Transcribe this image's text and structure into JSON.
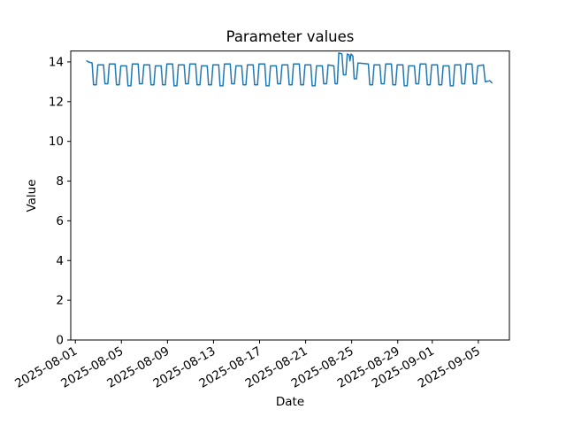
{
  "chart_data": {
    "type": "line",
    "title": "Parameter values",
    "xlabel": "Date",
    "ylabel": "Value",
    "grid": false,
    "legend": "none",
    "x_unit": "days since 2025-08-01",
    "xlim": [
      -0.4,
      37.7
    ],
    "ylim": [
      0,
      14.55
    ],
    "y_ticks": [
      0,
      2,
      4,
      6,
      8,
      10,
      12,
      14
    ],
    "x_ticks": [
      {
        "t": 0,
        "label": "2025-08-01"
      },
      {
        "t": 4,
        "label": "2025-08-05"
      },
      {
        "t": 8,
        "label": "2025-08-09"
      },
      {
        "t": 12,
        "label": "2025-08-13"
      },
      {
        "t": 16,
        "label": "2025-08-17"
      },
      {
        "t": 20,
        "label": "2025-08-21"
      },
      {
        "t": 24,
        "label": "2025-08-25"
      },
      {
        "t": 28,
        "label": "2025-08-29"
      },
      {
        "t": 31,
        "label": "2025-09-01"
      },
      {
        "t": 35,
        "label": "2025-09-05"
      }
    ],
    "series": [
      {
        "color": "#1f77b4",
        "line_width": 1.5,
        "points": [
          [
            1.0,
            14.05
          ],
          [
            1.12,
            14.0
          ],
          [
            1.45,
            13.95
          ],
          [
            1.58,
            12.85
          ],
          [
            1.82,
            12.85
          ],
          [
            1.95,
            13.85
          ],
          [
            2.45,
            13.85
          ],
          [
            2.57,
            12.9
          ],
          [
            2.82,
            12.9
          ],
          [
            2.95,
            13.9
          ],
          [
            3.45,
            13.9
          ],
          [
            3.57,
            12.85
          ],
          [
            3.82,
            12.85
          ],
          [
            3.95,
            13.8
          ],
          [
            4.45,
            13.8
          ],
          [
            4.57,
            12.8
          ],
          [
            4.82,
            12.8
          ],
          [
            4.95,
            13.9
          ],
          [
            5.45,
            13.9
          ],
          [
            5.57,
            12.9
          ],
          [
            5.82,
            12.9
          ],
          [
            5.95,
            13.85
          ],
          [
            6.45,
            13.85
          ],
          [
            6.57,
            12.85
          ],
          [
            6.82,
            12.85
          ],
          [
            6.95,
            13.8
          ],
          [
            7.45,
            13.8
          ],
          [
            7.57,
            12.85
          ],
          [
            7.82,
            12.85
          ],
          [
            7.95,
            13.9
          ],
          [
            8.45,
            13.9
          ],
          [
            8.57,
            12.8
          ],
          [
            8.82,
            12.8
          ],
          [
            8.95,
            13.85
          ],
          [
            9.45,
            13.85
          ],
          [
            9.57,
            12.9
          ],
          [
            9.82,
            12.9
          ],
          [
            9.95,
            13.9
          ],
          [
            10.45,
            13.9
          ],
          [
            10.57,
            12.85
          ],
          [
            10.82,
            12.85
          ],
          [
            10.95,
            13.8
          ],
          [
            11.45,
            13.8
          ],
          [
            11.57,
            12.85
          ],
          [
            11.82,
            12.85
          ],
          [
            11.95,
            13.85
          ],
          [
            12.45,
            13.85
          ],
          [
            12.57,
            12.8
          ],
          [
            12.82,
            12.8
          ],
          [
            12.95,
            13.9
          ],
          [
            13.45,
            13.9
          ],
          [
            13.57,
            12.9
          ],
          [
            13.82,
            12.9
          ],
          [
            13.95,
            13.8
          ],
          [
            14.45,
            13.8
          ],
          [
            14.57,
            12.85
          ],
          [
            14.82,
            12.85
          ],
          [
            14.95,
            13.85
          ],
          [
            15.45,
            13.85
          ],
          [
            15.57,
            12.85
          ],
          [
            15.82,
            12.85
          ],
          [
            15.95,
            13.9
          ],
          [
            16.45,
            13.9
          ],
          [
            16.57,
            12.8
          ],
          [
            16.82,
            12.8
          ],
          [
            16.95,
            13.8
          ],
          [
            17.45,
            13.8
          ],
          [
            17.57,
            12.9
          ],
          [
            17.82,
            12.9
          ],
          [
            17.95,
            13.85
          ],
          [
            18.45,
            13.85
          ],
          [
            18.57,
            12.85
          ],
          [
            18.82,
            12.85
          ],
          [
            18.95,
            13.9
          ],
          [
            19.45,
            13.9
          ],
          [
            19.57,
            12.85
          ],
          [
            19.82,
            12.85
          ],
          [
            19.95,
            13.85
          ],
          [
            20.45,
            13.85
          ],
          [
            20.57,
            12.8
          ],
          [
            20.82,
            12.8
          ],
          [
            20.95,
            13.8
          ],
          [
            21.45,
            13.8
          ],
          [
            21.57,
            12.9
          ],
          [
            21.82,
            12.9
          ],
          [
            21.95,
            13.85
          ],
          [
            22.45,
            13.8
          ],
          [
            22.57,
            12.9
          ],
          [
            22.75,
            12.9
          ],
          [
            22.88,
            14.45
          ],
          [
            23.15,
            14.4
          ],
          [
            23.28,
            13.35
          ],
          [
            23.5,
            13.35
          ],
          [
            23.62,
            14.4
          ],
          [
            23.78,
            14.35
          ],
          [
            23.85,
            14.05
          ],
          [
            23.95,
            14.4
          ],
          [
            24.1,
            14.3
          ],
          [
            24.22,
            13.15
          ],
          [
            24.42,
            13.15
          ],
          [
            24.55,
            13.95
          ],
          [
            25.45,
            13.9
          ],
          [
            25.57,
            12.85
          ],
          [
            25.82,
            12.85
          ],
          [
            25.95,
            13.85
          ],
          [
            26.45,
            13.85
          ],
          [
            26.57,
            12.9
          ],
          [
            26.82,
            12.9
          ],
          [
            26.95,
            13.9
          ],
          [
            27.45,
            13.9
          ],
          [
            27.57,
            12.85
          ],
          [
            27.82,
            12.85
          ],
          [
            27.95,
            13.85
          ],
          [
            28.45,
            13.85
          ],
          [
            28.57,
            12.8
          ],
          [
            28.82,
            12.8
          ],
          [
            28.95,
            13.8
          ],
          [
            29.45,
            13.8
          ],
          [
            29.57,
            12.9
          ],
          [
            29.82,
            12.9
          ],
          [
            29.95,
            13.9
          ],
          [
            30.45,
            13.9
          ],
          [
            30.57,
            12.85
          ],
          [
            30.82,
            12.85
          ],
          [
            30.95,
            13.85
          ],
          [
            31.45,
            13.85
          ],
          [
            31.57,
            12.85
          ],
          [
            31.82,
            12.85
          ],
          [
            31.95,
            13.8
          ],
          [
            32.45,
            13.8
          ],
          [
            32.57,
            12.8
          ],
          [
            32.82,
            12.8
          ],
          [
            32.95,
            13.85
          ],
          [
            33.45,
            13.85
          ],
          [
            33.57,
            12.9
          ],
          [
            33.82,
            12.9
          ],
          [
            33.95,
            13.9
          ],
          [
            34.45,
            13.9
          ],
          [
            34.57,
            12.9
          ],
          [
            34.82,
            12.9
          ],
          [
            34.95,
            13.8
          ],
          [
            35.45,
            13.85
          ],
          [
            35.6,
            13.0
          ],
          [
            36.0,
            13.05
          ],
          [
            36.18,
            12.95
          ]
        ]
      }
    ]
  }
}
